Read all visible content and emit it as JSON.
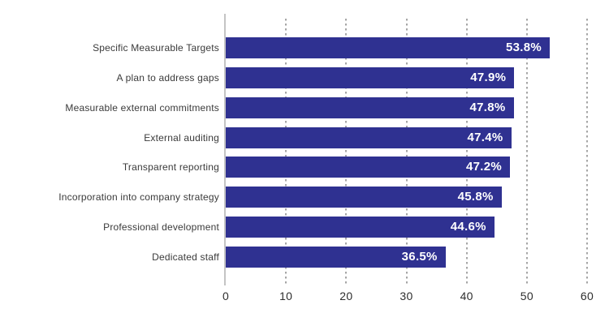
{
  "chart_data": {
    "type": "bar",
    "orientation": "horizontal",
    "title": "",
    "xlabel": "",
    "ylabel": "",
    "categories": [
      "Specific Measurable Targets",
      "A plan to address gaps",
      "Measurable external commitments",
      "External auditing",
      "Transparent reporting",
      "Incorporation into company strategy",
      "Professional development",
      "Dedicated staff"
    ],
    "values": [
      53.8,
      47.9,
      47.8,
      47.4,
      47.2,
      45.8,
      44.6,
      36.5
    ],
    "value_labels": [
      "53.8%",
      "47.9%",
      "47.8%",
      "47.4%",
      "47.2%",
      "45.8%",
      "44.6%",
      "36.5%"
    ],
    "value_suffix": "%",
    "xlim": [
      0,
      60
    ],
    "x_ticks": [
      0,
      10,
      20,
      30,
      40,
      50,
      60
    ],
    "grid": "vertical-dotted",
    "legend": "none",
    "colors": {
      "bar": "#2F3191",
      "value_label": "#FFFFFF",
      "category_label": "#3A3A3A",
      "tick_label": "#2E2E2E",
      "axis_line": "#C4C4C4",
      "gridline": "#A6A6A6",
      "background": "#FFFFFF"
    }
  }
}
